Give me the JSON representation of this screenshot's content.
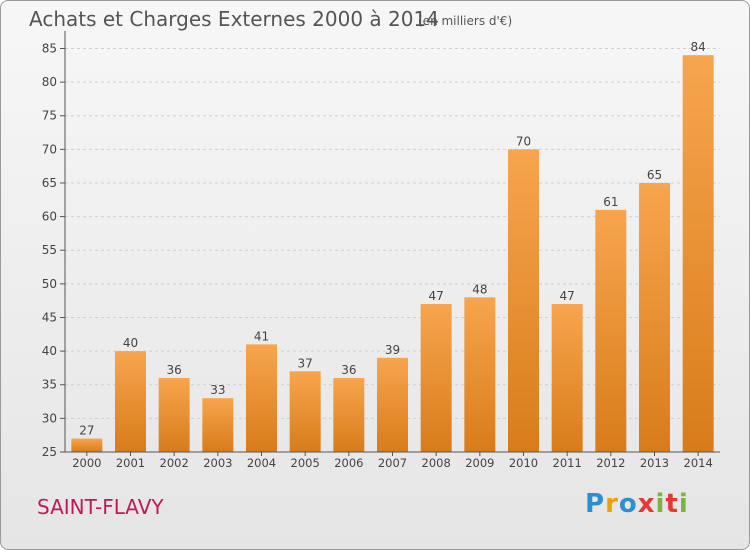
{
  "header": {
    "title": "Achats et Charges Externes 2000 à 2014",
    "unit": "(en milliers d'€)"
  },
  "footer": {
    "place": "SAINT-FLAVY",
    "logo": "Proxiti"
  },
  "colors": {
    "bar_top": "#f7a54e",
    "bar_bottom": "#d87c1a",
    "axis": "#555555",
    "grid": "#cfcfcf",
    "place": "#c2185b"
  },
  "chart_data": {
    "type": "bar",
    "title": "Achats et Charges Externes 2000 à 2014",
    "subtitle": "(en milliers d'€)",
    "categories": [
      "2000",
      "2001",
      "2002",
      "2003",
      "2004",
      "2005",
      "2006",
      "2007",
      "2008",
      "2009",
      "2010",
      "2011",
      "2012",
      "2013",
      "2014"
    ],
    "values": [
      27,
      40,
      36,
      33,
      41,
      37,
      36,
      39,
      47,
      48,
      70,
      47,
      61,
      65,
      84
    ],
    "yticks": [
      25,
      30,
      35,
      40,
      45,
      50,
      55,
      60,
      65,
      70,
      75,
      80,
      85
    ],
    "ylim": [
      25,
      87
    ],
    "xlabel": "",
    "ylabel": "",
    "grid": "horizontal dashed",
    "legend": "none"
  }
}
